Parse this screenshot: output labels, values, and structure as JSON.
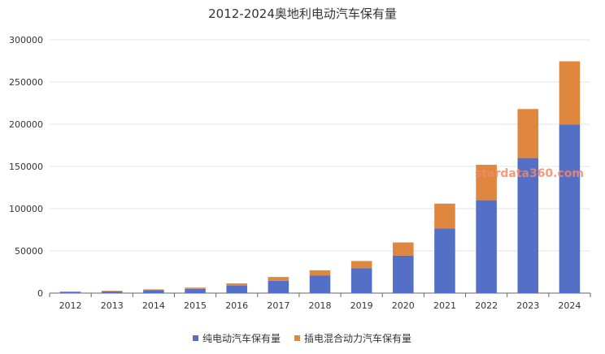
{
  "chart_data": {
    "type": "bar",
    "stacked": true,
    "title": "2012-2024奥地利电动汽车保有量",
    "categories": [
      "2012",
      "2013",
      "2014",
      "2015",
      "2016",
      "2017",
      "2018",
      "2019",
      "2020",
      "2021",
      "2022",
      "2023",
      "2024"
    ],
    "series": [
      {
        "name": "纯电动汽车保有量",
        "color": "#5470c6",
        "values": [
          1400,
          2100,
          3400,
          5000,
          9000,
          14600,
          21000,
          29500,
          44500,
          76500,
          110000,
          160000,
          199500
        ]
      },
      {
        "name": "插电混合动力汽车保有量",
        "color": "#e0873f",
        "values": [
          400,
          700,
          1000,
          1500,
          2500,
          4500,
          6000,
          8500,
          15500,
          29500,
          42000,
          58000,
          75000
        ]
      }
    ],
    "ylim": [
      0,
      300000
    ],
    "yticks": [
      "0",
      "50000",
      "100000",
      "150000",
      "200000",
      "250000",
      "300000"
    ],
    "grid": true,
    "legend_position": "bottom"
  },
  "watermark": "stardata360.com"
}
